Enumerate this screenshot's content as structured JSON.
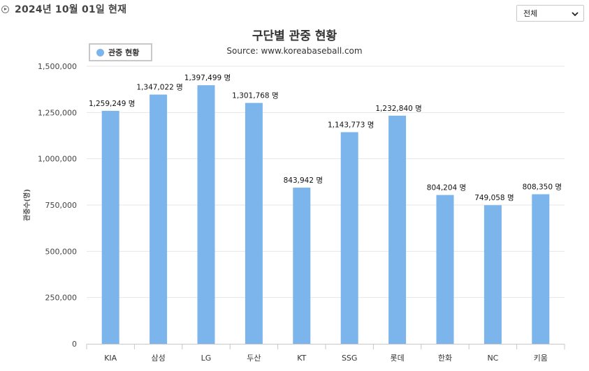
{
  "header": {
    "date_label": "2024년 10월 01일 현재",
    "filter_selected": "전체"
  },
  "chart_data": {
    "type": "bar",
    "title": "구단별 관중 현황",
    "subtitle": "Source: www.koreabaseball.com",
    "ylabel": "관중수(명)",
    "xlabel": "",
    "ylim": [
      0,
      1500000
    ],
    "yticks": [
      0,
      250000,
      500000,
      750000,
      1000000,
      1250000,
      1500000
    ],
    "ytick_labels": [
      "0",
      "250,000",
      "500,000",
      "750,000",
      "1,000,000",
      "1,250,000",
      "1,500,000"
    ],
    "grid": true,
    "legend_position": "top-left",
    "categories": [
      "KIA",
      "삼성",
      "LG",
      "두산",
      "KT",
      "SSG",
      "롯데",
      "한화",
      "NC",
      "키움"
    ],
    "series": [
      {
        "name": "관중 현황",
        "color": "#7cb5ec",
        "values": [
          1259249,
          1347022,
          1397499,
          1301768,
          843942,
          1143773,
          1232840,
          804204,
          749058,
          808350
        ],
        "data_labels": [
          "1,259,249 명",
          "1,347,022 명",
          "1,397,499 명",
          "1,301,768 명",
          "843,942 명",
          "1,143,773 명",
          "1,232,840 명",
          "804,204 명",
          "749,058 명",
          "808,350 명"
        ]
      }
    ]
  }
}
